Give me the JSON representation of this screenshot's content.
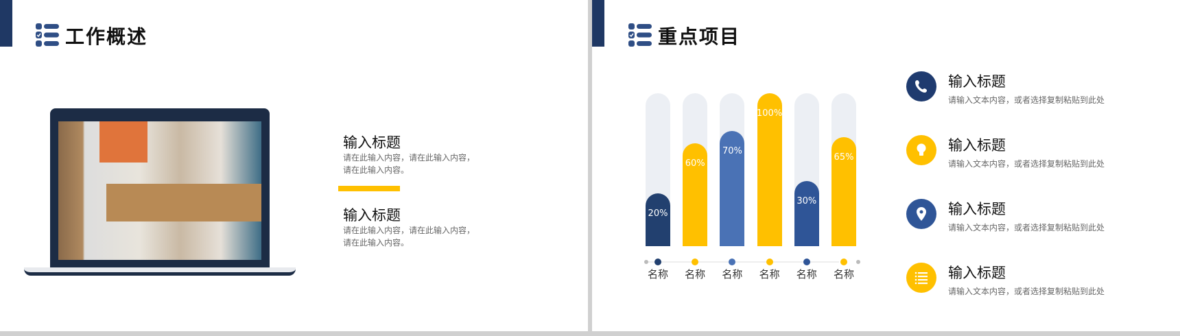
{
  "slide1": {
    "title": "工作概述",
    "items": [
      {
        "title": "输入标题",
        "desc": "请在此输入内容，请在此输入内容，请在此输入内容。"
      },
      {
        "title": "输入标题",
        "desc": "请在此输入内容，请在此输入内容，请在此输入内容。"
      }
    ]
  },
  "slide2": {
    "title": "重点项目",
    "items": [
      {
        "icon": "phone-icon",
        "color": "#1f3b6f",
        "title": "输入标题",
        "desc": "请输入文本内容，或者选择复制粘贴到此处"
      },
      {
        "icon": "lightbulb-icon",
        "color": "#ffc000",
        "title": "输入标题",
        "desc": "请输入文本内容，或者选择复制粘贴到此处"
      },
      {
        "icon": "location-pin-icon",
        "color": "#2f5597",
        "title": "输入标题",
        "desc": "请输入文本内容，或者选择复制粘贴到此处"
      },
      {
        "icon": "list-icon",
        "color": "#ffc000",
        "title": "输入标题",
        "desc": "请输入文本内容，或者选择复制粘贴到此处"
      }
    ]
  },
  "chart_data": {
    "type": "bar",
    "categories": [
      "名称",
      "名称",
      "名称",
      "名称",
      "名称",
      "名称"
    ],
    "values": [
      20,
      60,
      70,
      100,
      30,
      65
    ],
    "labels": [
      "20%",
      "60%",
      "70%",
      "100%",
      "30%",
      "65%"
    ],
    "ylim": [
      0,
      100
    ],
    "colors": [
      "#22406f",
      "#ffc000",
      "#4a72b5",
      "#ffc000",
      "#2f5597",
      "#ffc000"
    ],
    "track_color": "#eceff4"
  }
}
